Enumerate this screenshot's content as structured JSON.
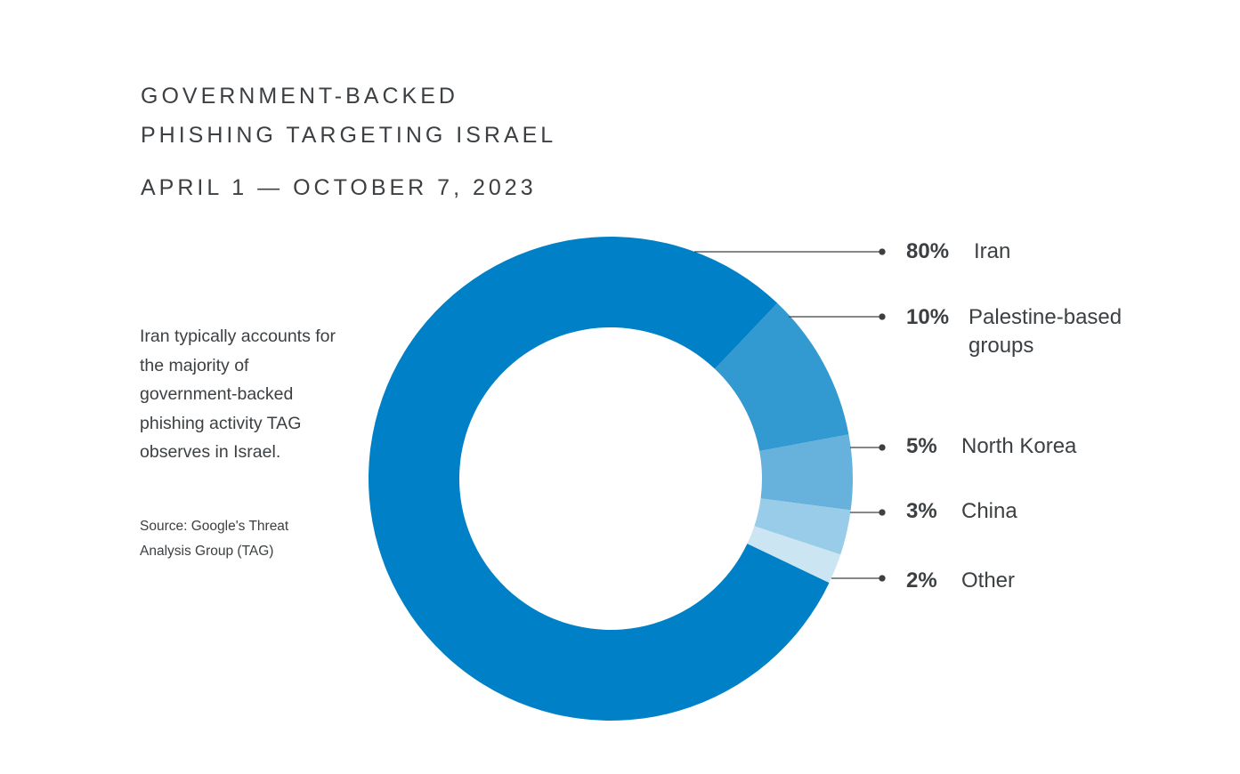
{
  "chart_data": {
    "type": "pie",
    "variant": "donut",
    "title_lines": [
      "GOVERNMENT-BACKED",
      "PHISHING TARGETING ISRAEL"
    ],
    "subtitle": "APRIL 1 — OCTOBER 7, 2023",
    "description": "Iran typically accounts for the majority of government-backed phishing activity TAG observes in Israel.",
    "source": "Source: Google's Threat Analysis Group (TAG)",
    "slices": [
      {
        "label": "Iran",
        "value": 80,
        "pct_label": "80%",
        "color": "#0080c6"
      },
      {
        "label": "Palestine-based groups",
        "value": 10,
        "pct_label": "10%",
        "color": "#3399d1"
      },
      {
        "label": "North Korea",
        "value": 5,
        "pct_label": "5%",
        "color": "#66b2dc"
      },
      {
        "label": "China",
        "value": 3,
        "pct_label": "3%",
        "color": "#99cce8"
      },
      {
        "label": "Other",
        "value": 2,
        "pct_label": "2%",
        "color": "#cce5f3"
      }
    ],
    "legend_placement": "right"
  }
}
